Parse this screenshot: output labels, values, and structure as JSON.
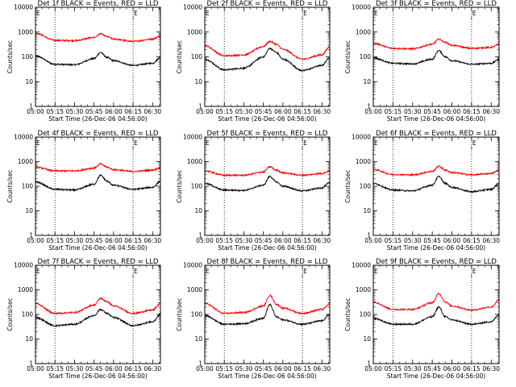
{
  "colors": {
    "events": "#000000",
    "lld": "#ff0000",
    "background": "#ffffff",
    "axes": "#000000"
  },
  "xlabel": "Start Time (26-Dec-06 04:56:00)",
  "ylabel": "Counts/sec",
  "x_ticks": [
    "05:00",
    "05:15",
    "05:30",
    "05:45",
    "06:00",
    "06:15",
    "06:30"
  ],
  "y_ticks": [
    "1",
    "10",
    "100",
    "1000",
    "10000"
  ],
  "marker_letters": [
    "E",
    "E"
  ],
  "chart_data": [
    {
      "type": "line",
      "title": "Det 1f BLACK = Events, RED = LLD",
      "x_range": [
        "05:00",
        "06:36"
      ],
      "y_scale": "log",
      "ylim": [
        1,
        10000
      ],
      "dotted_x": [
        "05:15",
        "06:15"
      ],
      "marker_x": [
        "05:00",
        "06:15"
      ],
      "x": [
        "05:00",
        "05:15",
        "05:30",
        "05:45",
        "05:50",
        "05:55",
        "06:00",
        "06:15",
        "06:30",
        "06:36"
      ],
      "series": [
        {
          "name": "BLACK = Events",
          "color": "#000000",
          "values": [
            110,
            50,
            48,
            85,
            150,
            95,
            70,
            45,
            55,
            95
          ]
        },
        {
          "name": "RED = LLD",
          "color": "#ff0000",
          "values": [
            900,
            460,
            450,
            600,
            850,
            650,
            520,
            420,
            520,
            700
          ]
        }
      ]
    },
    {
      "type": "line",
      "title": "Det 2f BLACK = Events, RED = LLD",
      "x_range": [
        "05:00",
        "06:36"
      ],
      "y_scale": "log",
      "ylim": [
        1,
        10000
      ],
      "dotted_x": [
        "05:15",
        "06:15"
      ],
      "marker_x": [
        "05:00",
        "06:15"
      ],
      "x": [
        "05:00",
        "05:15",
        "05:30",
        "05:45",
        "05:50",
        "05:55",
        "06:00",
        "06:15",
        "06:30",
        "06:36"
      ],
      "series": [
        {
          "name": "BLACK = Events",
          "color": "#000000",
          "values": [
            80,
            30,
            35,
            100,
            220,
            150,
            80,
            28,
            45,
            95
          ]
        },
        {
          "name": "RED = LLD",
          "color": "#ff0000",
          "values": [
            280,
            110,
            120,
            260,
            420,
            320,
            200,
            80,
            120,
            260
          ]
        }
      ]
    },
    {
      "type": "line",
      "title": "Det 3f BLACK = Events, RED = LLD",
      "x_range": [
        "05:00",
        "06:36"
      ],
      "y_scale": "log",
      "ylim": [
        1,
        10000
      ],
      "dotted_x": [
        "05:15",
        "06:15"
      ],
      "marker_x": [
        "05:00",
        "06:15"
      ],
      "x": [
        "05:00",
        "05:15",
        "05:30",
        "05:45",
        "05:50",
        "05:55",
        "06:00",
        "06:15",
        "06:30",
        "06:36"
      ],
      "series": [
        {
          "name": "BLACK = Events",
          "color": "#000000",
          "values": [
            90,
            55,
            52,
            80,
            180,
            100,
            70,
            50,
            55,
            80
          ]
        },
        {
          "name": "RED = LLD",
          "color": "#ff0000",
          "values": [
            350,
            220,
            210,
            320,
            520,
            380,
            290,
            220,
            240,
            320
          ]
        }
      ]
    },
    {
      "type": "line",
      "title": "Det 4f BLACK = Events, RED = LLD",
      "x_range": [
        "05:00",
        "06:36"
      ],
      "y_scale": "log",
      "ylim": [
        1,
        10000
      ],
      "dotted_x": [
        "05:15",
        "06:15"
      ],
      "marker_x": [
        "05:00",
        "06:15"
      ],
      "x": [
        "05:00",
        "05:15",
        "05:30",
        "05:45",
        "05:50",
        "05:55",
        "06:00",
        "06:15",
        "06:30",
        "06:36"
      ],
      "series": [
        {
          "name": "BLACK = Events",
          "color": "#000000",
          "values": [
            150,
            75,
            70,
            120,
            280,
            160,
            110,
            75,
            90,
            160
          ]
        },
        {
          "name": "RED = LLD",
          "color": "#ff0000",
          "values": [
            600,
            420,
            420,
            550,
            800,
            600,
            470,
            400,
            450,
            560
          ]
        }
      ]
    },
    {
      "type": "line",
      "title": "Det 5f BLACK = Events, RED = LLD",
      "x_range": [
        "05:00",
        "06:36"
      ],
      "y_scale": "log",
      "ylim": [
        1,
        10000
      ],
      "dotted_x": [
        "05:15",
        "06:15"
      ],
      "marker_x": [
        "05:00",
        "06:15"
      ],
      "x": [
        "05:00",
        "05:15",
        "05:30",
        "05:45",
        "05:50",
        "05:55",
        "06:00",
        "06:15",
        "06:30",
        "06:36"
      ],
      "series": [
        {
          "name": "BLACK = Events",
          "color": "#000000",
          "values": [
            130,
            70,
            68,
            110,
            250,
            150,
            100,
            65,
            85,
            140
          ]
        },
        {
          "name": "RED = LLD",
          "color": "#ff0000",
          "values": [
            420,
            280,
            280,
            380,
            620,
            450,
            350,
            280,
            330,
            420
          ]
        }
      ]
    },
    {
      "type": "line",
      "title": "Det 6f BLACK = Events, RED = LLD",
      "x_range": [
        "05:00",
        "06:36"
      ],
      "y_scale": "log",
      "ylim": [
        1,
        10000
      ],
      "dotted_x": [
        "05:15",
        "06:15"
      ],
      "marker_x": [
        "05:00",
        "06:15"
      ],
      "x": [
        "05:00",
        "05:15",
        "05:30",
        "05:45",
        "05:50",
        "05:55",
        "06:00",
        "06:15",
        "06:30",
        "06:36"
      ],
      "series": [
        {
          "name": "BLACK = Events",
          "color": "#000000",
          "values": [
            130,
            70,
            65,
            110,
            250,
            130,
            90,
            60,
            75,
            130
          ]
        },
        {
          "name": "RED = LLD",
          "color": "#ff0000",
          "values": [
            480,
            300,
            290,
            400,
            650,
            450,
            360,
            290,
            330,
            450
          ]
        }
      ]
    },
    {
      "type": "line",
      "title": "Det 7f BLACK = Events, RED = LLD",
      "x_range": [
        "05:00",
        "06:36"
      ],
      "y_scale": "log",
      "ylim": [
        1,
        10000
      ],
      "dotted_x": [
        "05:15",
        "06:15"
      ],
      "marker_x": [
        "05:00",
        "06:15"
      ],
      "x": [
        "05:00",
        "05:15",
        "05:30",
        "05:45",
        "05:50",
        "05:55",
        "06:00",
        "06:15",
        "06:30",
        "06:36"
      ],
      "series": [
        {
          "name": "BLACK = Events",
          "color": "#000000",
          "values": [
            75,
            35,
            40,
            90,
            160,
            110,
            75,
            35,
            50,
            100
          ]
        },
        {
          "name": "RED = LLD",
          "color": "#ff0000",
          "values": [
            280,
            110,
            120,
            240,
            450,
            330,
            220,
            110,
            150,
            280
          ]
        }
      ]
    },
    {
      "type": "line",
      "title": "Det 8f BLACK = Events, RED = LLD",
      "x_range": [
        "05:00",
        "06:36"
      ],
      "y_scale": "log",
      "ylim": [
        1,
        10000
      ],
      "dotted_x": [
        "05:15",
        "06:15"
      ],
      "marker_x": [
        "05:00",
        "06:15"
      ],
      "x": [
        "05:00",
        "05:15",
        "05:30",
        "05:45",
        "05:50",
        "05:55",
        "06:00",
        "06:15",
        "06:30",
        "06:36"
      ],
      "series": [
        {
          "name": "BLACK = Events",
          "color": "#000000",
          "values": [
            90,
            40,
            42,
            70,
            250,
            80,
            60,
            40,
            55,
            100
          ]
        },
        {
          "name": "RED = LLD",
          "color": "#ff0000",
          "values": [
            280,
            110,
            120,
            220,
            600,
            260,
            180,
            110,
            160,
            260
          ]
        }
      ]
    },
    {
      "type": "line",
      "title": "Det 9f BLACK = Events, RED = LLD",
      "x_range": [
        "05:00",
        "06:36"
      ],
      "y_scale": "log",
      "ylim": [
        1,
        10000
      ],
      "dotted_x": [
        "05:15",
        "06:15"
      ],
      "marker_x": [
        "05:00",
        "06:15"
      ],
      "x": [
        "05:00",
        "05:15",
        "05:30",
        "05:45",
        "05:50",
        "05:55",
        "06:00",
        "06:15",
        "06:30",
        "06:36"
      ],
      "series": [
        {
          "name": "BLACK = Events",
          "color": "#000000",
          "values": [
            70,
            40,
            40,
            80,
            200,
            80,
            60,
            40,
            50,
            100
          ]
        },
        {
          "name": "RED = LLD",
          "color": "#ff0000",
          "values": [
            320,
            160,
            160,
            300,
            700,
            320,
            220,
            150,
            200,
            380
          ]
        }
      ]
    }
  ]
}
